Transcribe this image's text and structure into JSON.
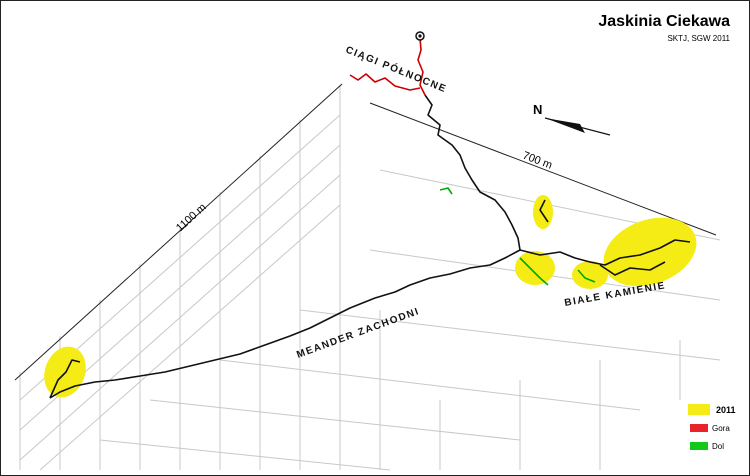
{
  "header": {
    "title": "Jaskinia Ciekawa",
    "subtitle": "SKTJ, SGW 2011"
  },
  "labels": {
    "north_passages": "CIĄGI PÓŁNOCNE",
    "west_meander": "MEANDER ZACHODNI",
    "white_stones": "BIAŁE KAMIENIE",
    "north": "N"
  },
  "scale": {
    "length_x": "700 m",
    "length_y": "1100 m"
  },
  "legend": [
    {
      "label": "2011"
    },
    {
      "label": "Gora"
    },
    {
      "label": "Dol"
    }
  ]
}
